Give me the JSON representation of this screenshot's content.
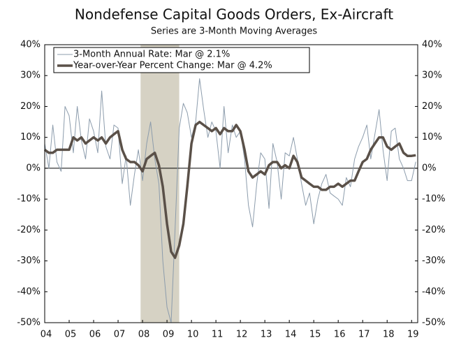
{
  "chart_data": {
    "type": "line",
    "title": "Nondefense Capital Goods Orders, Ex-Aircraft",
    "subtitle": "Series are 3-Month Moving Averages",
    "x": [
      2004,
      2004.17,
      2004.33,
      2004.5,
      2004.67,
      2004.83,
      2005,
      2005.17,
      2005.33,
      2005.5,
      2005.67,
      2005.83,
      2006,
      2006.17,
      2006.33,
      2006.5,
      2006.67,
      2006.83,
      2007,
      2007.17,
      2007.33,
      2007.5,
      2007.67,
      2007.83,
      2008,
      2008.17,
      2008.33,
      2008.5,
      2008.67,
      2008.83,
      2009,
      2009.17,
      2009.33,
      2009.5,
      2009.67,
      2009.83,
      2010,
      2010.17,
      2010.33,
      2010.5,
      2010.67,
      2010.83,
      2011,
      2011.17,
      2011.33,
      2011.5,
      2011.67,
      2011.83,
      2012,
      2012.17,
      2012.33,
      2012.5,
      2012.67,
      2012.83,
      2013,
      2013.17,
      2013.33,
      2013.5,
      2013.67,
      2013.83,
      2014,
      2014.17,
      2014.33,
      2014.5,
      2014.67,
      2014.83,
      2015,
      2015.17,
      2015.33,
      2015.5,
      2015.67,
      2015.83,
      2016,
      2016.17,
      2016.33,
      2016.5,
      2016.67,
      2016.83,
      2017,
      2017.17,
      2017.33,
      2017.5,
      2017.67,
      2017.83,
      2018,
      2018.17,
      2018.33,
      2018.5,
      2018.67,
      2018.83,
      2019,
      2019.17
    ],
    "series": [
      {
        "name": "3-Month Annual Rate: Mar @ 2.1%",
        "color": "#8c9cac",
        "width": 1,
        "values": [
          8,
          0,
          14,
          2,
          -1,
          20,
          17,
          5,
          20,
          9,
          3,
          16,
          12,
          5,
          25,
          7,
          3,
          14,
          13,
          -5,
          4,
          -12,
          -2,
          6,
          -4,
          8,
          15,
          3,
          -5,
          -30,
          -45,
          -50,
          -20,
          13,
          21,
          18,
          10,
          15,
          29,
          19,
          10,
          15,
          12,
          0,
          20,
          5,
          14,
          10,
          12,
          3,
          -12,
          -19,
          -5,
          5,
          3,
          -13,
          8,
          2,
          -10,
          5,
          4,
          10,
          3,
          -5,
          -12,
          -8,
          -18,
          -10,
          -5,
          -2,
          -8,
          -9,
          -10,
          -12,
          -3,
          -6,
          3,
          7,
          10,
          14,
          3,
          11,
          19,
          6,
          -4,
          12,
          13,
          3,
          0,
          -4,
          -4,
          2.1
        ]
      },
      {
        "name": "Year-over-Year Percent Change: Mar @ 4.2%",
        "color": "#5a5048",
        "width": 3.5,
        "values": [
          6,
          5,
          5,
          6,
          6,
          6,
          6,
          10,
          9,
          10,
          8,
          9,
          10,
          9,
          10,
          8,
          10,
          11,
          12,
          6,
          3,
          2,
          2,
          1,
          -1,
          3,
          4,
          5,
          1,
          -6,
          -18,
          -27,
          -29,
          -25,
          -18,
          -6,
          8,
          14,
          15,
          14,
          13,
          12,
          13,
          11,
          13,
          12,
          12,
          14,
          12,
          6,
          -1,
          -3,
          -2,
          -1,
          -2,
          1,
          2,
          2,
          0,
          1,
          0,
          4,
          2,
          -3,
          -4,
          -5,
          -6,
          -6,
          -7,
          -7,
          -6,
          -6,
          -5,
          -6,
          -5,
          -4,
          -4,
          -1,
          2,
          3,
          6,
          8,
          10,
          10,
          7,
          6,
          7,
          8,
          5,
          4,
          4,
          4.2
        ]
      }
    ],
    "xlim": [
      2004,
      2019.25
    ],
    "xticks": [
      {
        "value": 2004,
        "label": "04"
      },
      {
        "value": 2005,
        "label": "05"
      },
      {
        "value": 2006,
        "label": "06"
      },
      {
        "value": 2007,
        "label": "07"
      },
      {
        "value": 2008,
        "label": "08"
      },
      {
        "value": 2009,
        "label": "09"
      },
      {
        "value": 2010,
        "label": "10"
      },
      {
        "value": 2011,
        "label": "11"
      },
      {
        "value": 2012,
        "label": "12"
      },
      {
        "value": 2013,
        "label": "13"
      },
      {
        "value": 2014,
        "label": "14"
      },
      {
        "value": 2015,
        "label": "15"
      },
      {
        "value": 2016,
        "label": "16"
      },
      {
        "value": 2017,
        "label": "17"
      },
      {
        "value": 2018,
        "label": "18"
      },
      {
        "value": 2019,
        "label": "19"
      }
    ],
    "ylim": [
      -50,
      40
    ],
    "yticks": [
      {
        "value": -50,
        "label": "-50%"
      },
      {
        "value": -40,
        "label": "-40%"
      },
      {
        "value": -30,
        "label": "-30%"
      },
      {
        "value": -20,
        "label": "-20%"
      },
      {
        "value": -10,
        "label": "-10%"
      },
      {
        "value": 0,
        "label": "0%"
      },
      {
        "value": 10,
        "label": "10%"
      },
      {
        "value": 20,
        "label": "20%"
      },
      {
        "value": 30,
        "label": "30%"
      },
      {
        "value": 40,
        "label": "40%"
      }
    ],
    "shaded_ranges": [
      [
        2007.92,
        2009.5
      ]
    ],
    "shade_color": "#d6d2c4",
    "right_axis_labels": true,
    "legend": "upper left"
  }
}
